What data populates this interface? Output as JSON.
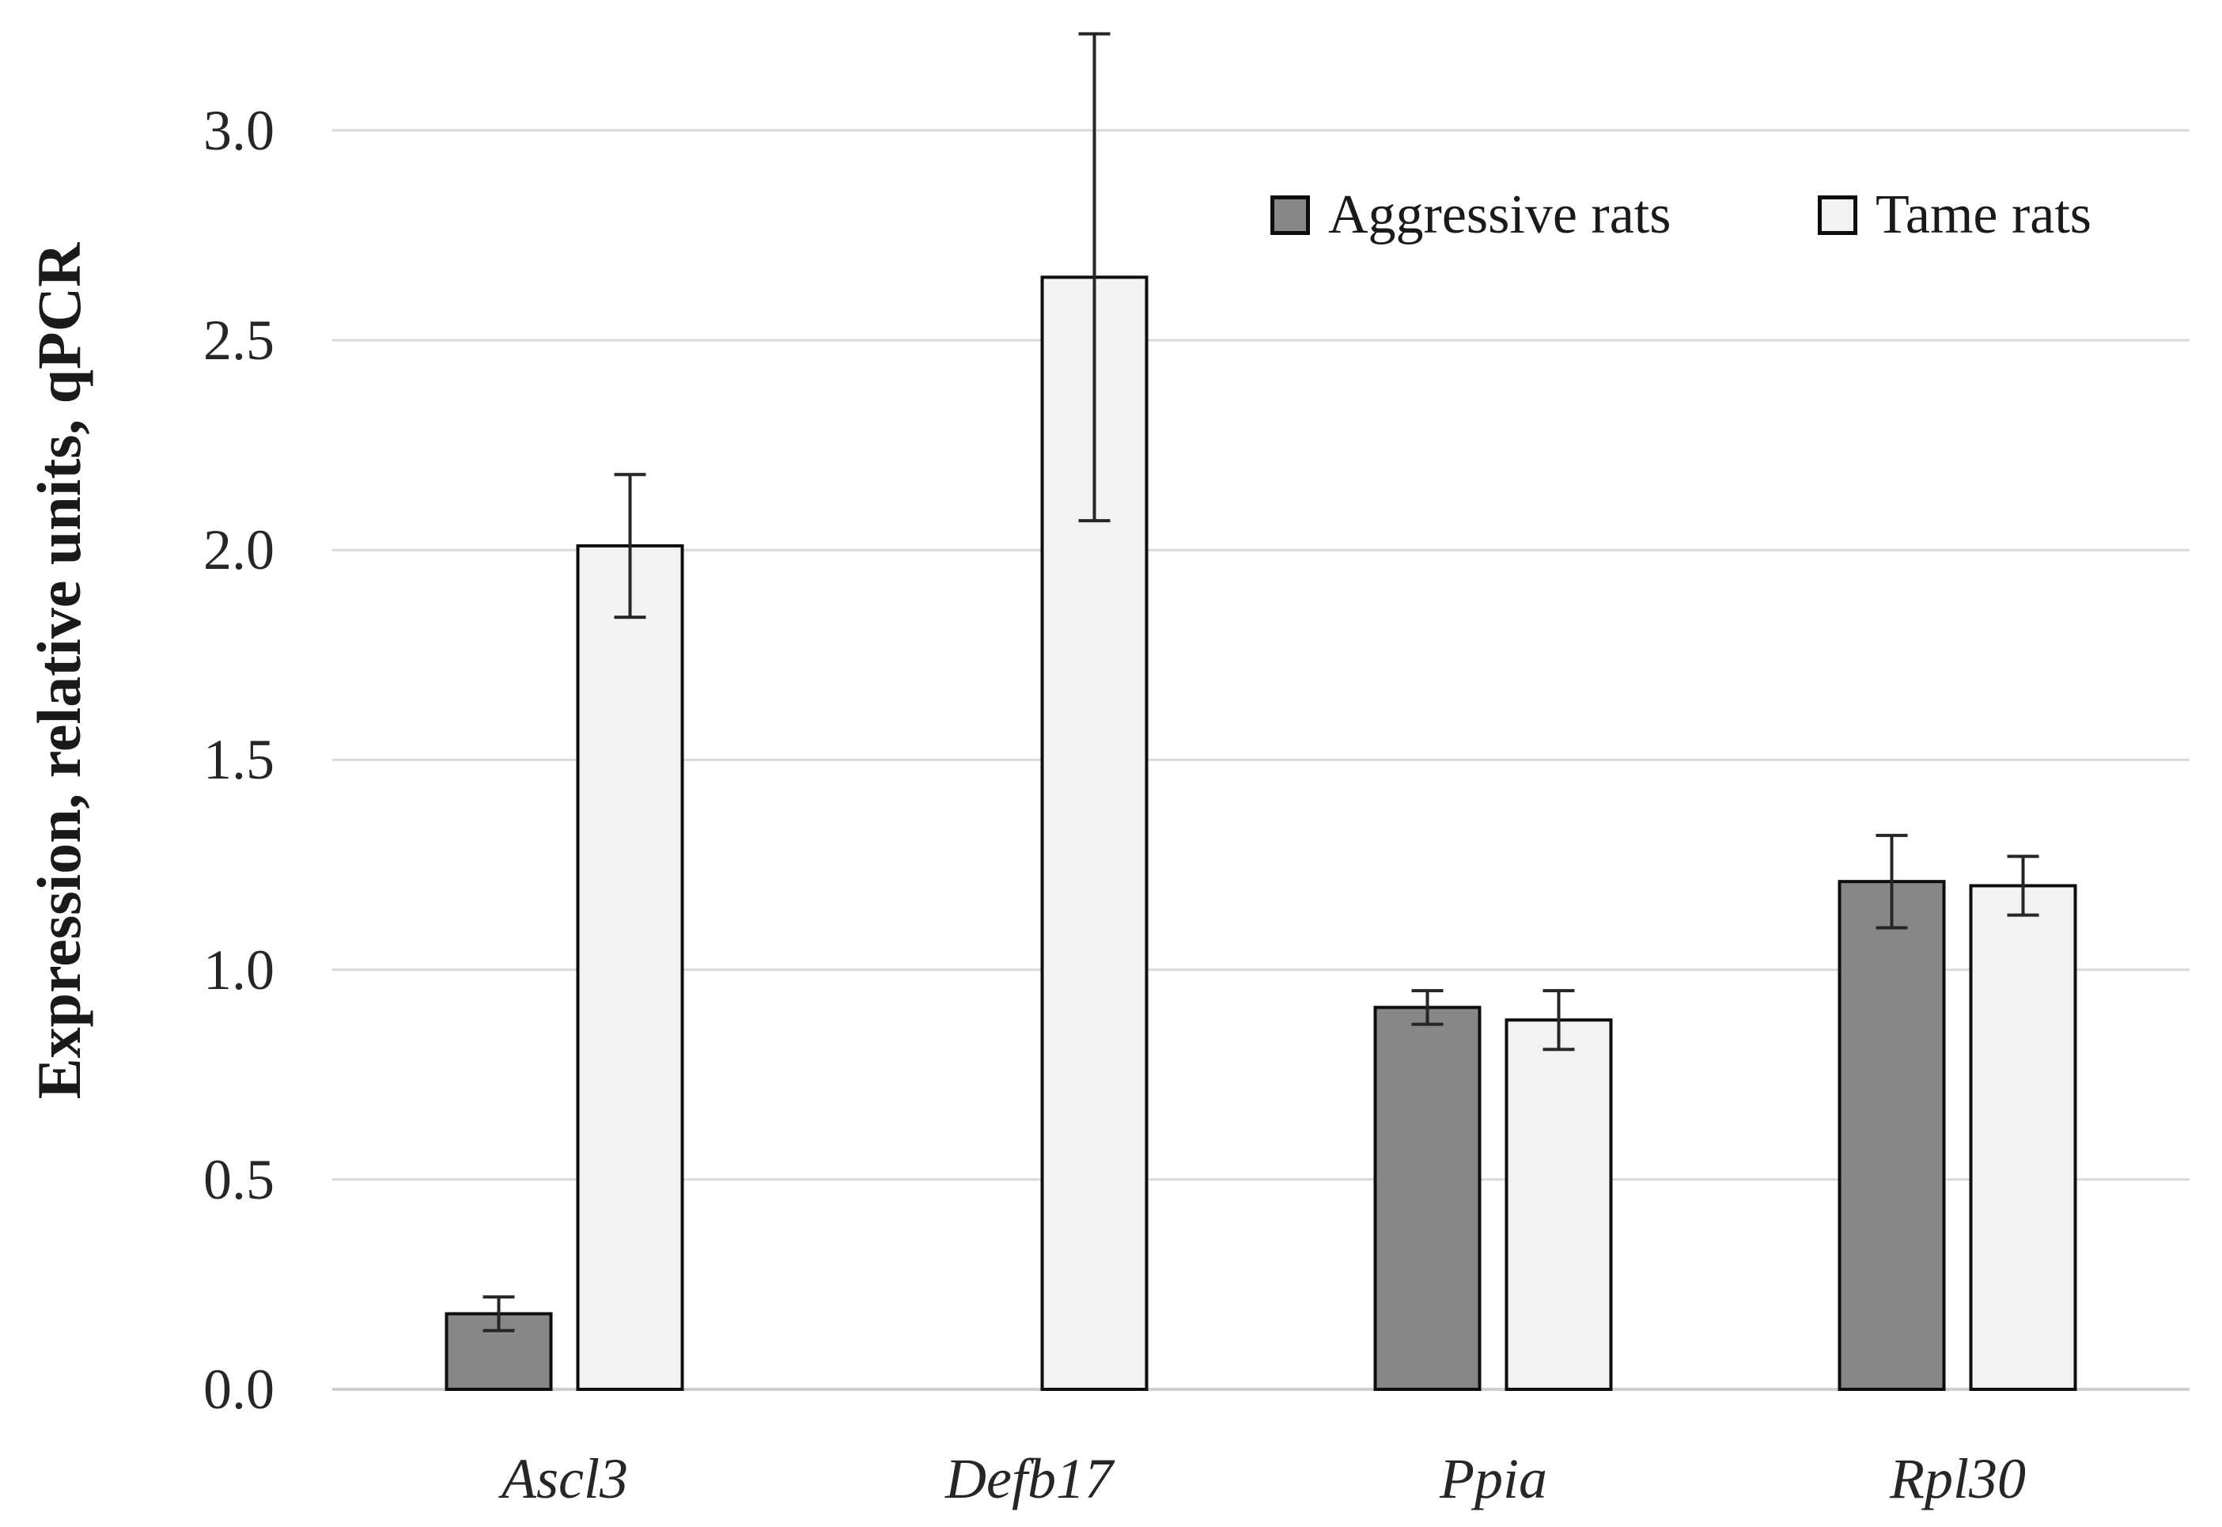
{
  "chart_data": {
    "type": "bar",
    "title": "",
    "xlabel": "",
    "ylabel": "Expression, relative units, qPCR",
    "categories": [
      "Ascl3",
      "Defb17",
      "Ppia",
      "Rpl30"
    ],
    "series": [
      {
        "name": "Aggressive rats",
        "color": "#878787",
        "values": [
          0.18,
          0,
          0.91,
          1.21
        ],
        "errors": [
          0.04,
          null,
          0.04,
          0.11
        ]
      },
      {
        "name": "Tame rats",
        "color": "#f2f2f2",
        "values": [
          2.01,
          2.65,
          0.88,
          1.2
        ],
        "errors": [
          0.17,
          0.58,
          0.07,
          0.07
        ]
      }
    ],
    "yticks": [
      0.0,
      0.5,
      1.0,
      1.5,
      2.0,
      2.5,
      3.0
    ],
    "ytick_labels": [
      "0.0",
      "0.5",
      "1.0",
      "1.5",
      "2.0",
      "2.5",
      "3.0"
    ],
    "ylim": [
      0,
      3.31
    ],
    "grid": true,
    "legend_position": "top-right",
    "colors": {
      "gridline": "#d9d9d9",
      "baseline": "#cfcfcf",
      "bar_border": "#0d0d0d",
      "error_bar": "#262626",
      "text": "#1a1a1a",
      "background": "#ffffff"
    }
  }
}
